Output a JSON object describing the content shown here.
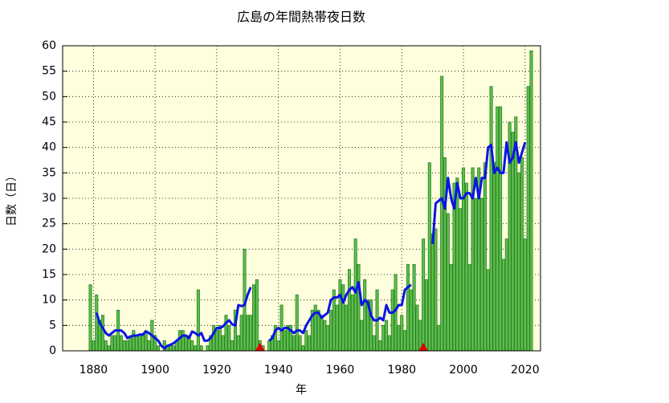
{
  "chart_data": {
    "type": "bar-line",
    "title": "広島の年間熱帯夜日数",
    "xlabel": "年",
    "ylabel": "日数（日）",
    "xlim": [
      1870,
      2025
    ],
    "ylim": [
      0,
      60
    ],
    "xticks": [
      1880,
      1900,
      1920,
      1940,
      1960,
      1980,
      2000,
      2020
    ],
    "yticks": [
      0,
      5,
      10,
      15,
      20,
      25,
      30,
      35,
      40,
      45,
      50,
      55,
      60
    ],
    "grid": true,
    "background": "#ffffdd",
    "bars": {
      "color": "#5cc04a",
      "edgecolor": "#2e7d2a",
      "x": [
        1879,
        1880,
        1881,
        1882,
        1883,
        1884,
        1885,
        1886,
        1887,
        1888,
        1889,
        1890,
        1891,
        1892,
        1893,
        1894,
        1895,
        1896,
        1897,
        1898,
        1899,
        1900,
        1901,
        1902,
        1903,
        1904,
        1905,
        1906,
        1907,
        1908,
        1909,
        1910,
        1911,
        1912,
        1913,
        1914,
        1915,
        1916,
        1917,
        1918,
        1919,
        1920,
        1921,
        1922,
        1923,
        1924,
        1925,
        1926,
        1927,
        1928,
        1929,
        1930,
        1931,
        1932,
        1933,
        1934,
        1935,
        1936,
        1937,
        1938,
        1939,
        1940,
        1941,
        1942,
        1943,
        1944,
        1945,
        1946,
        1947,
        1948,
        1949,
        1950,
        1951,
        1952,
        1953,
        1954,
        1955,
        1956,
        1957,
        1958,
        1959,
        1960,
        1961,
        1962,
        1963,
        1964,
        1965,
        1966,
        1967,
        1968,
        1969,
        1970,
        1971,
        1972,
        1973,
        1974,
        1975,
        1976,
        1977,
        1978,
        1979,
        1980,
        1981,
        1982,
        1983,
        1984,
        1985,
        1986,
        1987,
        1988,
        1989,
        1990,
        1991,
        1992,
        1993,
        1994,
        1995,
        1996,
        1997,
        1998,
        1999,
        2000,
        2001,
        2002,
        2003,
        2004,
        2005,
        2006,
        2007,
        2008,
        2009,
        2010,
        2011,
        2012,
        2013,
        2014,
        2015,
        2016,
        2017,
        2018,
        2019,
        2020,
        2021,
        2022
      ],
      "values": [
        13,
        2,
        11,
        6,
        7,
        2,
        1,
        3,
        3,
        8,
        3,
        2,
        2,
        3,
        4,
        3,
        3,
        3,
        4,
        2,
        6,
        3,
        1,
        0,
        2,
        1,
        1,
        1,
        2,
        4,
        4,
        3,
        3,
        2,
        1,
        12,
        1,
        0,
        1,
        3,
        5,
        4,
        5,
        3,
        7,
        5,
        2,
        8,
        3,
        7,
        20,
        7,
        7,
        13,
        14,
        2,
        1,
        0,
        2,
        3,
        5,
        2,
        9,
        4,
        5,
        5,
        3,
        11,
        3,
        1,
        4,
        3,
        8,
        9,
        8,
        7,
        6,
        5,
        8,
        12,
        9,
        14,
        13,
        9,
        16,
        11,
        22,
        17,
        6,
        14,
        10,
        10,
        3,
        12,
        2,
        5,
        6,
        3,
        12,
        15,
        5,
        7,
        4,
        17,
        12,
        17,
        9,
        6,
        22,
        14,
        37,
        23,
        24,
        5,
        54,
        38,
        27,
        17,
        33,
        34,
        28,
        36,
        33,
        17,
        36,
        30,
        36,
        30,
        37,
        16,
        52,
        37,
        48,
        48,
        18,
        22,
        45,
        43,
        46,
        35,
        38,
        22,
        52,
        59
      ]
    },
    "line": {
      "color": "#0a14e6",
      "x": [
        1881,
        1882,
        1883,
        1884,
        1885,
        1886,
        1887,
        1888,
        1889,
        1890,
        1891,
        1892,
        1893,
        1894,
        1895,
        1896,
        1897,
        1898,
        1899,
        1900,
        1901,
        1902,
        1903,
        1904,
        1905,
        1906,
        1907,
        1908,
        1909,
        1910,
        1911,
        1912,
        1913,
        1914,
        1915,
        1916,
        1917,
        1918,
        1919,
        1920,
        1921,
        1922,
        1923,
        1924,
        1925,
        1926,
        1927,
        1928,
        1929,
        1930,
        1931,
        1932,
        1933,
        1934,
        1935,
        1936,
        1937,
        1938,
        1939,
        1940,
        1941,
        1942,
        1943,
        1944,
        1945,
        1946,
        1947,
        1948,
        1949,
        1950,
        1951,
        1952,
        1953,
        1954,
        1955,
        1956,
        1957,
        1958,
        1959,
        1960,
        1961,
        1962,
        1963,
        1964,
        1965,
        1966,
        1967,
        1968,
        1969,
        1970,
        1971,
        1972,
        1973,
        1974,
        1975,
        1976,
        1977,
        1978,
        1979,
        1980,
        1981,
        1982,
        1983,
        1984,
        1985,
        1986,
        1987,
        1988,
        1989,
        1990,
        1991,
        1992,
        1993,
        1994,
        1995,
        1996,
        1997,
        1998,
        1999,
        2000,
        2001,
        2002,
        2003,
        2004,
        2005,
        2006,
        2007,
        2008,
        2009,
        2010,
        2011,
        2012,
        2013,
        2014,
        2015,
        2016,
        2017,
        2018,
        2019,
        2020
      ],
      "values": [
        7.5,
        5.5,
        4.5,
        3.5,
        3,
        3.5,
        4,
        4,
        4,
        3.5,
        2.5,
        2.8,
        3,
        3,
        3.2,
        3.2,
        3.8,
        3.5,
        3,
        2.5,
        2,
        1,
        0.5,
        1,
        1.2,
        1.5,
        2,
        2.5,
        3,
        3,
        2.5,
        3.8,
        3.5,
        3,
        3.5,
        2,
        2,
        2.5,
        3.5,
        4.5,
        4.5,
        4.8,
        5.5,
        6,
        5.2,
        5,
        9,
        8.8,
        9,
        11,
        12.5,
        null,
        null,
        null,
        null,
        null,
        2,
        2.5,
        4,
        4.5,
        4,
        4.5,
        4.5,
        4,
        3.5,
        4,
        4,
        3.5,
        5,
        6,
        7,
        7.5,
        7.5,
        6.5,
        7,
        7.5,
        10,
        10.5,
        10.5,
        11,
        9.5,
        11,
        12,
        12.5,
        11.5,
        13.5,
        9,
        10,
        9.5,
        7,
        6,
        6,
        6.5,
        6,
        9,
        7.5,
        7.5,
        8,
        9,
        9,
        12,
        12.5,
        13,
        null,
        null,
        null,
        null,
        null,
        null,
        21,
        29,
        29.5,
        30,
        28,
        34,
        30,
        28,
        33,
        30,
        30,
        31,
        31,
        30,
        34,
        30,
        34,
        34,
        40,
        40.5,
        35,
        36,
        35,
        35,
        41,
        37,
        38,
        41,
        37,
        39,
        41
      ]
    },
    "markers": {
      "color": "#e00000",
      "x": [
        1934,
        1987
      ]
    }
  }
}
